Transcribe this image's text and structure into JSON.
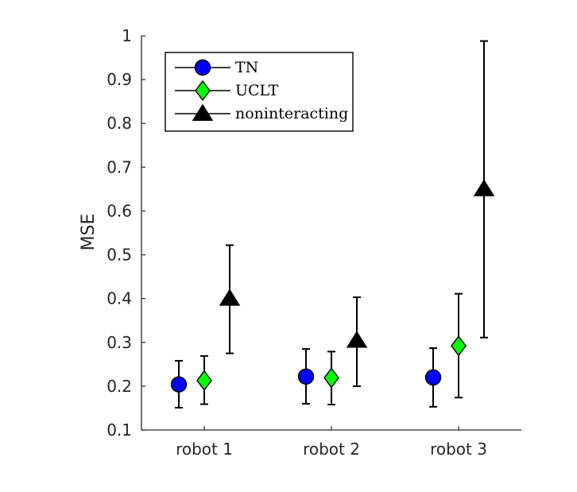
{
  "chart_data": {
    "type": "scatter",
    "ylabel": "MSE",
    "ylim": [
      0.1,
      1
    ],
    "yticks": [
      "0.1",
      "0.2",
      "0.3",
      "0.4",
      "0.5",
      "0.6",
      "0.7",
      "0.8",
      "0.9",
      "1"
    ],
    "categories": [
      "robot 1",
      "robot 2",
      "robot 3"
    ],
    "legend_position": "top-left",
    "grid": false,
    "series": [
      {
        "name": "TN",
        "marker": "circle",
        "color": "#0000ff",
        "values": [
          0.204,
          0.222,
          0.22
        ],
        "error_low": [
          0.151,
          0.16,
          0.153
        ],
        "error_high": [
          0.258,
          0.285,
          0.287
        ]
      },
      {
        "name": "UCLT",
        "marker": "diamond",
        "color": "#00ff00",
        "values": [
          0.213,
          0.219,
          0.292
        ],
        "error_low": [
          0.159,
          0.158,
          0.174
        ],
        "error_high": [
          0.269,
          0.279,
          0.411
        ]
      },
      {
        "name": "noninteracting",
        "marker": "triangle",
        "color": "#000000",
        "values": [
          0.4,
          0.304,
          0.65
        ],
        "error_low": [
          0.275,
          0.2,
          0.311
        ],
        "error_high": [
          0.522,
          0.403,
          0.988
        ]
      }
    ]
  }
}
